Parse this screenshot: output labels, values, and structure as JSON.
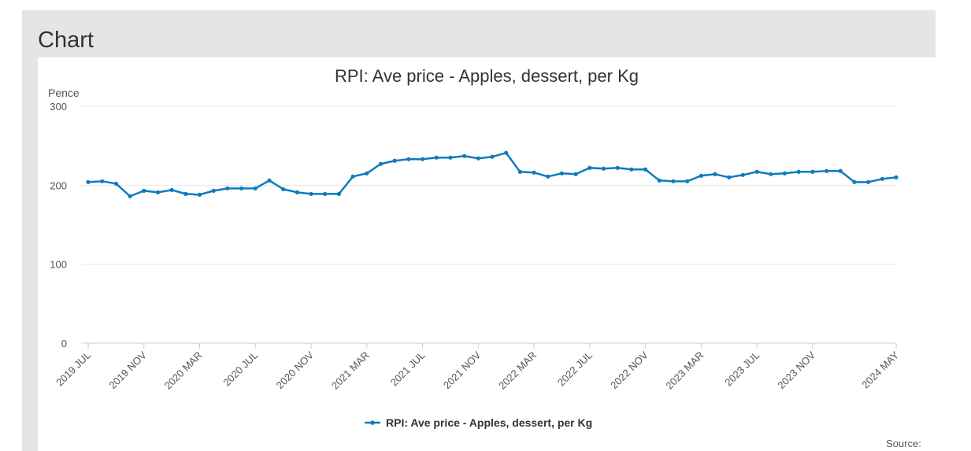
{
  "panel": {
    "title": "Chart"
  },
  "colors": {
    "series": "#0f7bbd",
    "grid": "#e6e6e6",
    "text": "#555555",
    "title": "#333333"
  },
  "source_label": "Source:",
  "chart_data": {
    "type": "line",
    "title": "RPI: Ave price - Apples, dessert, per Kg",
    "ylabel": "Pence",
    "xlabel": "",
    "ylim": [
      0,
      300
    ],
    "yticks": [
      0,
      100,
      200,
      300
    ],
    "grid": true,
    "legend": "bottom-center",
    "x_tick_labels": [
      {
        "index": 0,
        "label": "2019 JUL"
      },
      {
        "index": 4,
        "label": "2019 NOV"
      },
      {
        "index": 8,
        "label": "2020 MAR"
      },
      {
        "index": 12,
        "label": "2020 JUL"
      },
      {
        "index": 16,
        "label": "2020 NOV"
      },
      {
        "index": 20,
        "label": "2021 MAR"
      },
      {
        "index": 24,
        "label": "2021 JUL"
      },
      {
        "index": 28,
        "label": "2021 NOV"
      },
      {
        "index": 32,
        "label": "2022 MAR"
      },
      {
        "index": 36,
        "label": "2022 JUL"
      },
      {
        "index": 40,
        "label": "2022 NOV"
      },
      {
        "index": 44,
        "label": "2023 MAR"
      },
      {
        "index": 48,
        "label": "2023 JUL"
      },
      {
        "index": 52,
        "label": "2023 NOV"
      },
      {
        "index": 58,
        "label": "2024 MAY"
      }
    ],
    "series": [
      {
        "name": "RPI: Ave price - Apples, dessert, per Kg",
        "values": [
          204,
          205,
          202,
          186,
          193,
          191,
          194,
          189,
          188,
          193,
          196,
          196,
          196,
          206,
          195,
          191,
          189,
          189,
          189,
          211,
          215,
          227,
          231,
          233,
          233,
          235,
          235,
          237,
          234,
          236,
          241,
          217,
          216,
          211,
          215,
          214,
          222,
          221,
          222,
          220,
          220,
          206,
          205,
          205,
          212,
          214,
          210,
          213,
          217,
          214,
          215,
          217,
          217,
          218,
          218,
          204,
          204,
          208,
          210
        ]
      }
    ]
  }
}
